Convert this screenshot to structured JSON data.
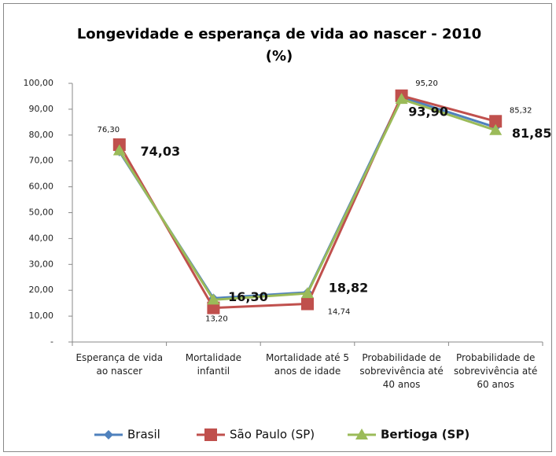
{
  "chart_data": {
    "type": "line",
    "title": "Longevidade e esperança de vida ao nascer - 2010\n(%)",
    "categories": [
      "Esperança de vida ao nascer",
      "Mortalidade infantil",
      "Mortalidade até 5 anos de idade",
      "Probabilidade de sobrevivência até 40 anos",
      "Probabilidade de sobrevivência até 60 anos"
    ],
    "series": [
      {
        "name": "Brasil",
        "color": "#4f81bd",
        "marker": "diamond",
        "values": [
          73.6,
          16.9,
          19.2,
          94.7,
          83.0
        ]
      },
      {
        "name": "São Paulo (SP)",
        "color": "#c0504d",
        "marker": "square",
        "values": [
          76.3,
          13.2,
          14.74,
          95.2,
          85.32
        ],
        "value_labels": [
          "76,30",
          "13,20",
          "14,74",
          "95,20",
          "85,32"
        ]
      },
      {
        "name": "Bertioga (SP)",
        "color": "#9bbb59",
        "marker": "triangle",
        "values": [
          74.03,
          16.3,
          18.82,
          93.9,
          81.85
        ],
        "value_labels": [
          "74,03",
          "16,30",
          "18,82",
          "93,90",
          "81,85"
        ]
      }
    ],
    "ylim": [
      0,
      100
    ],
    "yticks": [
      {
        "value": 0,
        "label": "-"
      },
      {
        "value": 10,
        "label": "10,00"
      },
      {
        "value": 20,
        "label": "20,00"
      },
      {
        "value": 30,
        "label": "30,00"
      },
      {
        "value": 40,
        "label": "40,00"
      },
      {
        "value": 50,
        "label": "50,00"
      },
      {
        "value": 60,
        "label": "60,00"
      },
      {
        "value": 70,
        "label": "70,00"
      },
      {
        "value": 80,
        "label": "80,00"
      },
      {
        "value": 90,
        "label": "90,00"
      },
      {
        "value": 100,
        "label": "100,00"
      }
    ],
    "legend": "bottom",
    "grid": false
  }
}
